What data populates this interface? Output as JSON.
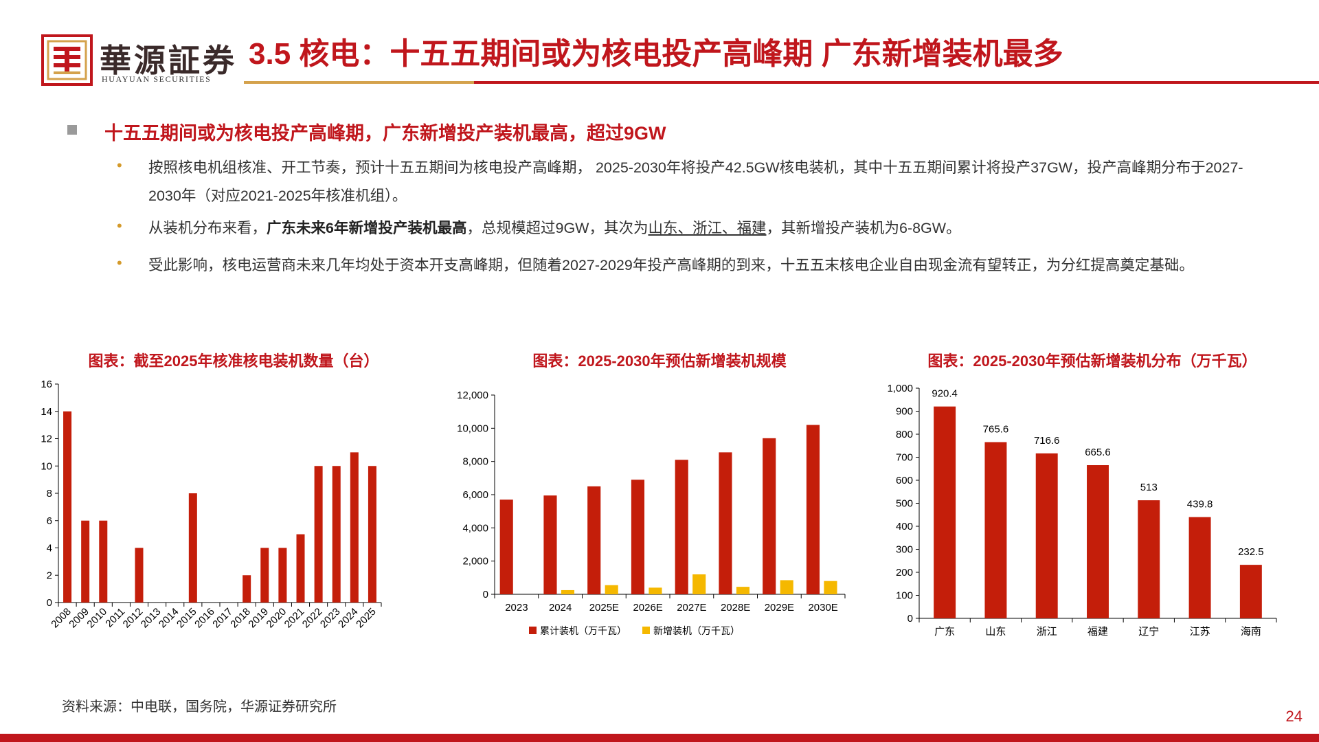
{
  "logo": {
    "cn": "華源証券",
    "en": "HUAYUAN SECURITIES"
  },
  "title": "3.5 核电：十五五期间或为核电投产高峰期 广东新增装机最多",
  "section": {
    "heading": "十五五期间或为核电投产高峰期，广东新增投产装机最高，超过9GW"
  },
  "bullets": [
    {
      "text": "按照核电机组核准、开工节奏，预计十五五期间为核电投产高峰期， 2025-2030年将投产42.5GW核电装机，其中十五五期间累计将投产37GW，投产高峰期分布于2027-2030年（对应2021-2025年核准机组）。"
    },
    {
      "pre": "从装机分布来看，",
      "bold": "广东未来6年新增投产装机最高",
      "mid": "，总规模超过9GW，其次为",
      "underline": "山东、浙江、福建",
      "post": "，其新增投产装机为6-8GW。"
    },
    {
      "text": "受此影响，核电运营商未来几年均处于资本开支高峰期，但随着2027-2029年投产高峰期的到来，十五五末核电企业自由现金流有望转正，为分红提高奠定基础。"
    }
  ],
  "bullet_glyph": "•",
  "colors": {
    "red": "#c0161c",
    "gold": "#f5b800",
    "bar_red": "#c41e0a"
  },
  "chart_data": [
    {
      "type": "bar",
      "title": "图表：截至2025年核准核电装机数量（台）",
      "categories": [
        "2008",
        "2009",
        "2010",
        "2011",
        "2012",
        "2013",
        "2014",
        "2015",
        "2016",
        "2017",
        "2018",
        "2019",
        "2020",
        "2021",
        "2022",
        "2023",
        "2024",
        "2025"
      ],
      "values": [
        14,
        6,
        6,
        0,
        4,
        0,
        0,
        8,
        0,
        0,
        2,
        4,
        4,
        5,
        10,
        10,
        11,
        10
      ],
      "ylim": [
        0,
        16
      ],
      "yticks": [
        "0",
        "2",
        "4",
        "6",
        "8",
        "10",
        "12",
        "14",
        "16"
      ],
      "xlabel": "",
      "ylabel": ""
    },
    {
      "type": "bar",
      "title": "图表：2025-2030年预估新增装机规模",
      "categories": [
        "2023",
        "2024",
        "2025E",
        "2026E",
        "2027E",
        "2028E",
        "2029E",
        "2030E"
      ],
      "series": [
        {
          "name": "累计装机（万千瓦）",
          "values": [
            5700,
            5950,
            6500,
            6900,
            8100,
            8550,
            9400,
            10200
          ]
        },
        {
          "name": "新增装机（万千瓦）",
          "values": [
            0,
            250,
            550,
            400,
            1200,
            450,
            850,
            800
          ]
        }
      ],
      "ylim": [
        0,
        12000
      ],
      "yticks": [
        "0",
        "2,000",
        "4,000",
        "6,000",
        "8,000",
        "10,000",
        "12,000"
      ],
      "legend": "bottom"
    },
    {
      "type": "bar",
      "title": "图表：2025-2030年预估新增装机分布（万千瓦）",
      "categories": [
        "广东",
        "山东",
        "浙江",
        "福建",
        "辽宁",
        "江苏",
        "海南"
      ],
      "values": [
        920.4,
        765.6,
        716.6,
        665.6,
        513,
        439.8,
        232.5
      ],
      "labels": [
        "920.4",
        "765.6",
        "716.6",
        "665.6",
        "513",
        "439.8",
        "232.5"
      ],
      "ylim": [
        0,
        1000
      ],
      "yticks": [
        "0",
        "100",
        "200",
        "300",
        "400",
        "500",
        "600",
        "700",
        "800",
        "900",
        "1,000"
      ]
    }
  ],
  "source": "资料来源：中电联，国务院，华源证券研究所",
  "page_number": "24"
}
